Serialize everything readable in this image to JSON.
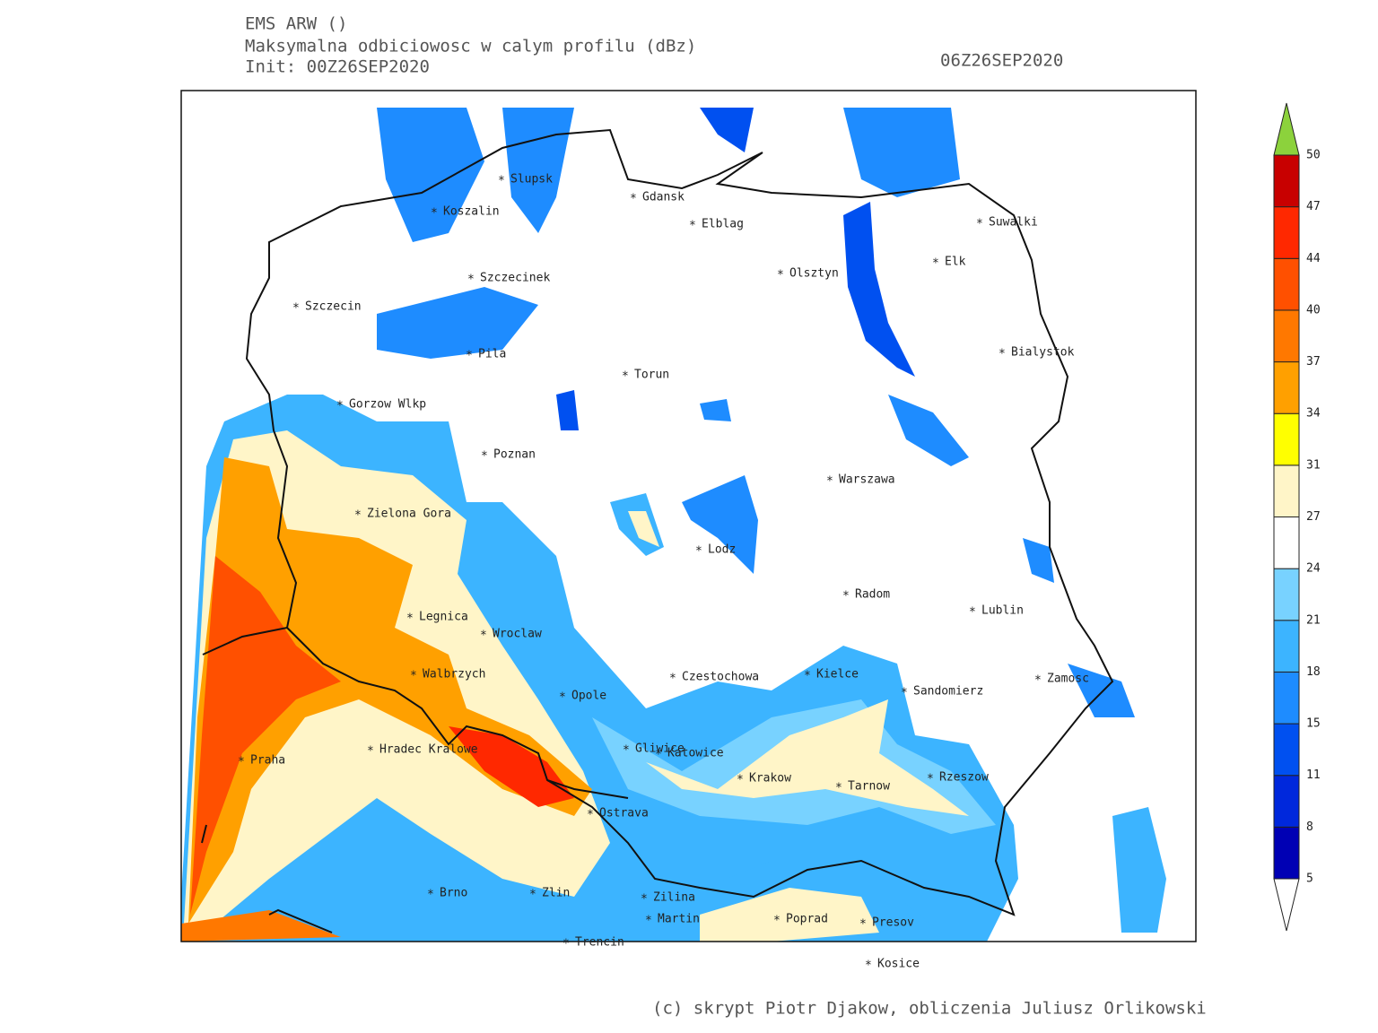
{
  "header": {
    "title": "EMS ARW ()",
    "subtitle": "Maksymalna odbiciowosc w calym profilu (dBz)",
    "init": "Init: 00Z26SEP2020",
    "valid": "06Z26SEP2020"
  },
  "cities": [
    "Gdansk",
    "Elblag",
    "Suwalki",
    "Slupsk",
    "Koszalin",
    "Elk",
    "Olsztyn",
    "Szczecinek",
    "Szczecin",
    "Bialystok",
    "Pila",
    "Torun",
    "Gorzow Wlkp",
    "Poznan",
    "Warszawa",
    "Zielona Gora",
    "Lodz",
    "Radom",
    "Lublin",
    "Legnica",
    "Wroclaw",
    "Walbrzych",
    "Kielce",
    "Czestochowa",
    "Zamosc",
    "Sandomierz",
    "Opole",
    "Gliwice",
    "Hradec Kralowe",
    "Katowice",
    "Praha",
    "Krakow",
    "Rzeszow",
    "Tarnow",
    "Ostrava",
    "Brno",
    "Zlin",
    "Zilina",
    "Martin",
    "Poprad",
    "Presov",
    "Trencin",
    "Kosice"
  ],
  "colorbar": {
    "levels": [
      5,
      8,
      11,
      15,
      18,
      21,
      24,
      27,
      31,
      34,
      37,
      40,
      44,
      47,
      50
    ],
    "colors": [
      "#0000b4",
      "#0028dc",
      "#0050f0",
      "#1e8cff",
      "#3cb4ff",
      "#78d2ff",
      "#ffffff",
      "#fff5c8",
      "#ffff00",
      "#ffa000",
      "#ff7800",
      "#ff5000",
      "#ff2800",
      "#c80000"
    ],
    "over_color": "#8cd23c",
    "under_color": "#ffffff"
  },
  "footer": "(c) skrypt Piotr Djakow, obliczenia Juliusz Orlikowski"
}
